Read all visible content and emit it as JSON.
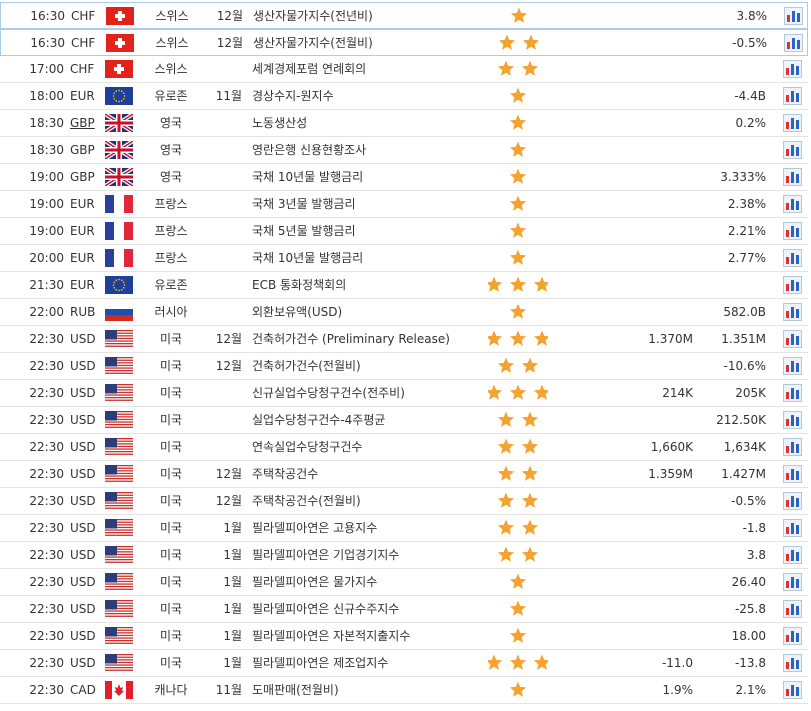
{
  "table": {
    "rows": [
      {
        "time": "16:30",
        "currency": "CHF",
        "country": "스위스",
        "period": "12월",
        "event": "생산자물가지수(전년비)",
        "importance": 1,
        "previous": "3.8%"
      },
      {
        "time": "16:30",
        "currency": "CHF",
        "country": "스위스",
        "period": "12월",
        "event": "생산자물가지수(전월비)",
        "importance": 2,
        "previous": "-0.5%"
      },
      {
        "time": "17:00",
        "currency": "CHF",
        "country": "스위스",
        "event": "세계경제포럼 연례회의",
        "importance": 2
      },
      {
        "time": "18:00",
        "currency": "EUR",
        "country": "유로존",
        "period": "11월",
        "event": "경상수지-원지수",
        "importance": 1,
        "previous": "-4.4B"
      },
      {
        "time": "18:30",
        "currency": "GBP",
        "country": "영국",
        "event": "노동생산성",
        "importance": 1,
        "previous": "0.2%"
      },
      {
        "time": "18:30",
        "currency": "GBP",
        "country": "영국",
        "event": "영란은행 신용현황조사",
        "importance": 1
      },
      {
        "time": "19:00",
        "currency": "GBP",
        "country": "영국",
        "event": "국채 10년물 발행금리",
        "importance": 1,
        "previous": "3.333%"
      },
      {
        "time": "19:00",
        "currency": "EUR",
        "country": "프랑스",
        "event": "국채 3년물 발행금리",
        "importance": 1,
        "previous": "2.38%"
      },
      {
        "time": "19:00",
        "currency": "EUR",
        "country": "프랑스",
        "event": "국채 5년물 발행금리",
        "importance": 1,
        "previous": "2.21%"
      },
      {
        "time": "20:00",
        "currency": "EUR",
        "country": "프랑스",
        "event": "국채 10년물 발행금리",
        "importance": 1,
        "previous": "2.77%"
      },
      {
        "time": "21:30",
        "currency": "EUR",
        "country": "유로존",
        "event": "ECB 통화정책회의",
        "importance": 3
      },
      {
        "time": "22:00",
        "currency": "RUB",
        "country": "러시아",
        "event": "외환보유액(USD)",
        "importance": 1,
        "previous": "582.0B"
      },
      {
        "time": "22:30",
        "currency": "USD",
        "country": "미국",
        "period": "12월",
        "event": "건축허가건수 (Preliminary Release)",
        "importance": 3,
        "forecast": "1.370M",
        "previous": "1.351M"
      },
      {
        "time": "22:30",
        "currency": "USD",
        "country": "미국",
        "period": "12월",
        "event": "건축허가건수(전월비)",
        "importance": 2,
        "previous": "-10.6%"
      },
      {
        "time": "22:30",
        "currency": "USD",
        "country": "미국",
        "event": "신규실업수당청구건수(전주비)",
        "importance": 3,
        "forecast": "214K",
        "previous": "205K"
      },
      {
        "time": "22:30",
        "currency": "USD",
        "country": "미국",
        "event": "실업수당청구건수-4주평균",
        "importance": 2,
        "previous": "212.50K"
      },
      {
        "time": "22:30",
        "currency": "USD",
        "country": "미국",
        "event": "연속실업수당청구건수",
        "importance": 2,
        "forecast": "1,660K",
        "previous": "1,634K"
      },
      {
        "time": "22:30",
        "currency": "USD",
        "country": "미국",
        "period": "12월",
        "event": "주택착공건수",
        "importance": 2,
        "forecast": "1.359M",
        "previous": "1.427M"
      },
      {
        "time": "22:30",
        "currency": "USD",
        "country": "미국",
        "period": "12월",
        "event": "주택착공건수(전월비)",
        "importance": 2,
        "previous": "-0.5%"
      },
      {
        "time": "22:30",
        "currency": "USD",
        "country": "미국",
        "period": "1월",
        "event": "필라델피아연은 고용지수",
        "importance": 2,
        "previous": "-1.8"
      },
      {
        "time": "22:30",
        "currency": "USD",
        "country": "미국",
        "period": "1월",
        "event": "필라델피아연은 기업경기지수",
        "importance": 2,
        "previous": "3.8"
      },
      {
        "time": "22:30",
        "currency": "USD",
        "country": "미국",
        "period": "1월",
        "event": "필라델피아연은 물가지수",
        "importance": 1,
        "previous": "26.40"
      },
      {
        "time": "22:30",
        "currency": "USD",
        "country": "미국",
        "period": "1월",
        "event": "필라델피아연은 신규수주지수",
        "importance": 1,
        "previous": "-25.8"
      },
      {
        "time": "22:30",
        "currency": "USD",
        "country": "미국",
        "period": "1월",
        "event": "필라델피아연은 자본적지출지수",
        "importance": 1,
        "previous": "18.00"
      },
      {
        "time": "22:30",
        "currency": "USD",
        "country": "미국",
        "period": "1월",
        "event": "필라델피아연은 제조업지수",
        "importance": 3,
        "forecast": "-11.0",
        "previous": "-13.8"
      },
      {
        "time": "22:30",
        "currency": "CAD",
        "country": "캐나다",
        "period": "11월",
        "event": "도매판매(전월비)",
        "importance": 1,
        "forecast": "1.9%",
        "previous": "2.1%"
      }
    ]
  }
}
